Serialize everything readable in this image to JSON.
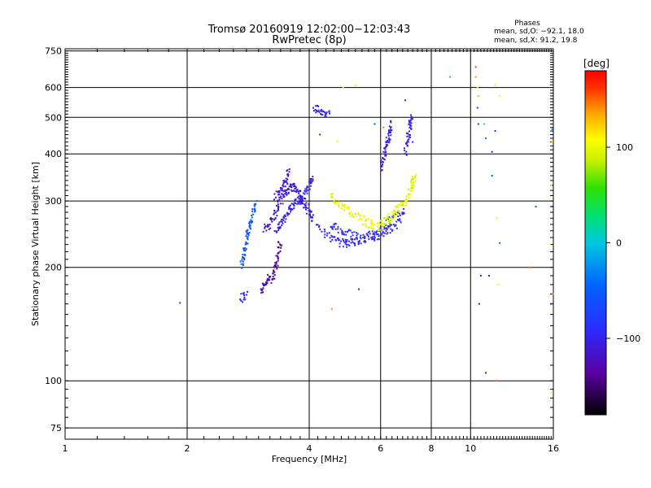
{
  "chart_data": {
    "type": "scatter",
    "title_line1": "Tromsø 20160919 12:02:00−12:03:43",
    "title_line2": "RwPretec (8p)",
    "xlabel": "Frequency [MHz]",
    "ylabel": "Stationary phase Virtual Height [km]",
    "x_scale": "log",
    "y_scale": "log",
    "xlim": [
      1,
      16
    ],
    "ylim": [
      70,
      760
    ],
    "x_ticks": [
      "1",
      "2",
      "4",
      "6",
      "8",
      "10",
      "16"
    ],
    "y_ticks": [
      "75",
      "100",
      "200",
      "300",
      "400",
      "500",
      "600",
      "750"
    ],
    "grid": true,
    "phases_box": {
      "title": "Phases",
      "line_o": "mean, sd,O: −92.1, 18.0",
      "line_x": "mean, sd,X:  91.2, 19.8"
    },
    "colorbar": {
      "unit": "[deg]",
      "range": [
        -180,
        180
      ],
      "tick_labels": [
        "100",
        "0",
        "−100"
      ],
      "tick_values": [
        100,
        0,
        -100
      ]
    },
    "traces": [
      {
        "points": [
          [
            2.72,
            201
          ],
          [
            2.76,
            218
          ],
          [
            2.8,
            236
          ],
          [
            2.85,
            255
          ],
          [
            2.9,
            275
          ],
          [
            2.95,
            300
          ]
        ],
        "phase": -60
      },
      {
        "points": [
          [
            2.7,
            165
          ],
          [
            2.8,
            170
          ]
        ],
        "phase": -95
      },
      {
        "points": [
          [
            3.05,
            172
          ],
          [
            3.12,
            182
          ],
          [
            3.2,
            190
          ]
        ],
        "phase": -125
      },
      {
        "points": [
          [
            3.25,
            185
          ],
          [
            3.3,
            200
          ],
          [
            3.35,
            215
          ],
          [
            3.4,
            235
          ]
        ],
        "phase": -135
      },
      {
        "points": [
          [
            3.1,
            250
          ],
          [
            3.2,
            262
          ],
          [
            3.3,
            278
          ],
          [
            3.4,
            300
          ],
          [
            3.5,
            318
          ],
          [
            3.6,
            330
          ],
          [
            3.7,
            325
          ],
          [
            3.8,
            312
          ]
        ],
        "phase": -110
      },
      {
        "points": [
          [
            3.8,
            300
          ],
          [
            3.9,
            310
          ],
          [
            4.0,
            330
          ],
          [
            4.1,
            345
          ]
        ],
        "phase": -105
      },
      {
        "points": [
          [
            3.3,
            305
          ],
          [
            3.4,
            320
          ],
          [
            3.5,
            340
          ],
          [
            3.58,
            360
          ]
        ],
        "phase": -115
      },
      {
        "points": [
          [
            3.3,
            250
          ],
          [
            3.4,
            260
          ],
          [
            3.5,
            272
          ],
          [
            3.6,
            285
          ],
          [
            3.7,
            300
          ],
          [
            3.8,
            305
          ],
          [
            3.9,
            295
          ],
          [
            4.0,
            280
          ],
          [
            4.1,
            268
          ]
        ],
        "phase": -100
      },
      {
        "points": [
          [
            4.2,
            255
          ],
          [
            4.5,
            240
          ],
          [
            4.8,
            232
          ],
          [
            5.0,
            232
          ],
          [
            5.3,
            235
          ],
          [
            5.7,
            240
          ],
          [
            6.0,
            245
          ],
          [
            6.3,
            252
          ],
          [
            6.6,
            262
          ],
          [
            6.85,
            285
          ]
        ],
        "phase": -95
      },
      {
        "points": [
          [
            4.5,
            262
          ],
          [
            4.8,
            250
          ],
          [
            5.1,
            243
          ],
          [
            5.5,
            242
          ],
          [
            5.9,
            250
          ],
          [
            6.3,
            265
          ],
          [
            6.6,
            280
          ]
        ],
        "phase": -90
      },
      {
        "points": [
          [
            4.5,
            310
          ],
          [
            4.75,
            295
          ],
          [
            5.0,
            282
          ],
          [
            5.3,
            272
          ],
          [
            5.6,
            262
          ],
          [
            5.85,
            256
          ]
        ],
        "phase": 100
      },
      {
        "points": [
          [
            5.9,
            255
          ],
          [
            6.1,
            262
          ],
          [
            6.3,
            270
          ],
          [
            6.5,
            278
          ],
          [
            6.7,
            288
          ],
          [
            6.9,
            300
          ],
          [
            7.1,
            318
          ],
          [
            7.2,
            335
          ],
          [
            7.3,
            350
          ]
        ],
        "phase": 95
      },
      {
        "points": [
          [
            6.0,
            360
          ],
          [
            6.1,
            390
          ],
          [
            6.2,
            420
          ],
          [
            6.3,
            450
          ],
          [
            6.4,
            480
          ]
        ],
        "phase": -100
      },
      {
        "points": [
          [
            6.9,
            400
          ],
          [
            7.0,
            440
          ],
          [
            7.1,
            480
          ],
          [
            7.15,
            500
          ]
        ],
        "phase": -105
      },
      {
        "points": [
          [
            4.1,
            530
          ],
          [
            4.3,
            520
          ],
          [
            4.5,
            505
          ]
        ],
        "phase": -100
      }
    ],
    "scatter": [
      [
        4.85,
        600,
        100
      ],
      [
        5.2,
        608,
        100
      ],
      [
        4.7,
        432,
        100
      ],
      [
        4.55,
        155,
        140
      ],
      [
        4.25,
        450,
        -90
      ],
      [
        5.3,
        175,
        -110
      ],
      [
        6.9,
        555,
        -100
      ],
      [
        8.9,
        640,
        40
      ],
      [
        10.3,
        680,
        160
      ],
      [
        10.3,
        640,
        140
      ],
      [
        10.4,
        600,
        100
      ],
      [
        10.45,
        570,
        80
      ],
      [
        10.4,
        530,
        -90
      ],
      [
        10.45,
        480,
        -90
      ],
      [
        10.8,
        480,
        30
      ],
      [
        10.9,
        440,
        -40
      ],
      [
        11.5,
        460,
        -100
      ],
      [
        10.5,
        160,
        -120
      ],
      [
        11.3,
        405,
        -100
      ],
      [
        11.5,
        610,
        100
      ],
      [
        11.8,
        570,
        100
      ],
      [
        11.6,
        270,
        100
      ],
      [
        11.8,
        232,
        -50
      ],
      [
        11.1,
        190,
        -120
      ],
      [
        10.6,
        190,
        -100
      ],
      [
        11.3,
        350,
        -60
      ],
      [
        11.7,
        180,
        110
      ],
      [
        10.9,
        105,
        -110
      ],
      [
        11.6,
        100,
        150
      ],
      [
        14.5,
        290,
        -50
      ],
      [
        14.0,
        200,
        150
      ],
      [
        15.9,
        465,
        -20
      ],
      [
        15.9,
        430,
        120
      ],
      [
        15.8,
        330,
        120
      ],
      [
        15.9,
        290,
        -80
      ],
      [
        15.7,
        230,
        100
      ],
      [
        15.8,
        160,
        -100
      ],
      [
        15.8,
        93,
        100
      ],
      [
        16.0,
        170,
        130
      ],
      [
        1.92,
        161,
        -80
      ],
      [
        5.8,
        480,
        -60
      ],
      [
        6.1,
        470,
        60
      ],
      [
        7.2,
        430,
        -100
      ]
    ]
  }
}
